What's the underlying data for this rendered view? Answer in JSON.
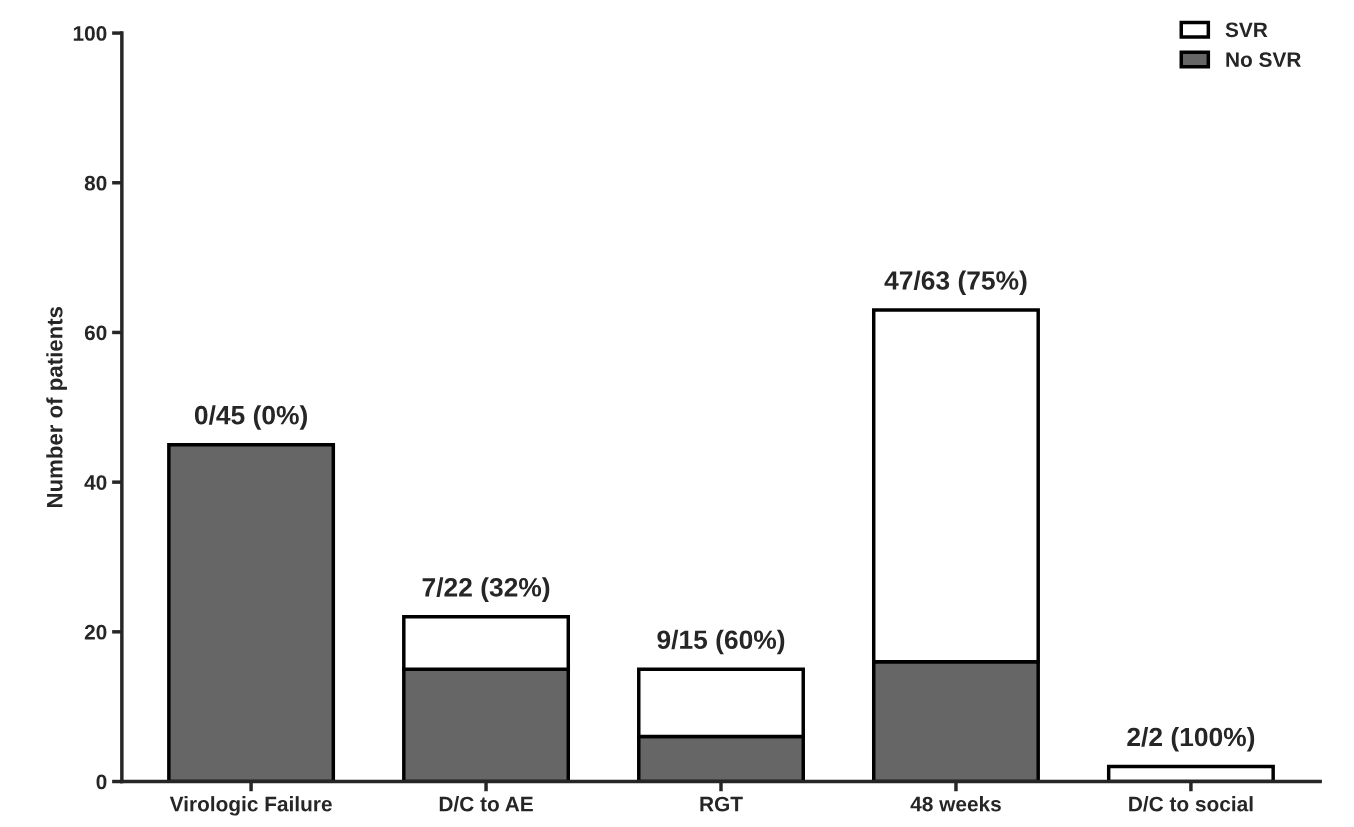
{
  "chart_data": {
    "type": "bar",
    "stacked": true,
    "ylabel": "Number of patients",
    "categories": [
      "Virologic Failure",
      "D/C to AE",
      "RGT",
      "48 weeks",
      "D/C to social"
    ],
    "series": [
      {
        "name": "No SVR",
        "color": "#666666",
        "values": [
          45,
          15,
          6,
          16,
          0
        ]
      },
      {
        "name": "SVR",
        "color": "#ffffff",
        "values": [
          0,
          7,
          9,
          47,
          2
        ]
      }
    ],
    "totals": [
      "0/45 (0%)",
      "7/22 (32%)",
      "9/15 (60%)",
      "47/63 (75%)",
      "2/2 (100%)"
    ],
    "ylim": [
      0,
      100
    ],
    "yticks": [
      0,
      20,
      40,
      60,
      80,
      100
    ],
    "grid": false,
    "legend": "top right"
  }
}
